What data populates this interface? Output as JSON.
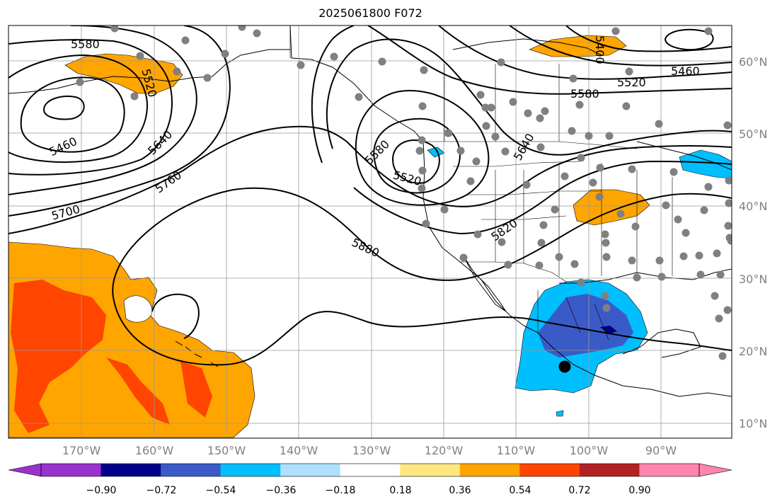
{
  "title": "2025061800 F072",
  "map": {
    "lat_labels": [
      "60°N",
      "50°N",
      "40°N",
      "30°N",
      "20°N",
      "10°N"
    ],
    "lon_labels": [
      "170°W",
      "160°W",
      "150°W",
      "140°W",
      "130°W",
      "120°W",
      "110°W",
      "100°W",
      "90°W"
    ],
    "contour_labels": [
      "5580",
      "5520",
      "5460",
      "5640",
      "5760",
      "5700",
      "5580",
      "5520",
      "5880",
      "5820",
      "5640",
      "5580",
      "5520",
      "5460",
      "5400"
    ],
    "fill_colors": {
      "positive_mid": "#ffa500",
      "positive_high": "#ff4500",
      "negative_mid": "#00bfff",
      "negative_high": "#3a5bc7",
      "negative_max": "#000080"
    }
  },
  "colorbar": {
    "ticks": [
      "−0.90",
      "−0.72",
      "−0.54",
      "−0.36",
      "−0.18",
      "0.18",
      "0.36",
      "0.54",
      "0.72",
      "0.90"
    ],
    "colors": [
      "#9932cc",
      "#00008b",
      "#3a5bc7",
      "#00bfff",
      "#b0e0ff",
      "#ffffff",
      "#ffe680",
      "#ffa500",
      "#ff4500",
      "#b22222",
      "#ff85b0",
      "#ff85b0"
    ]
  }
}
